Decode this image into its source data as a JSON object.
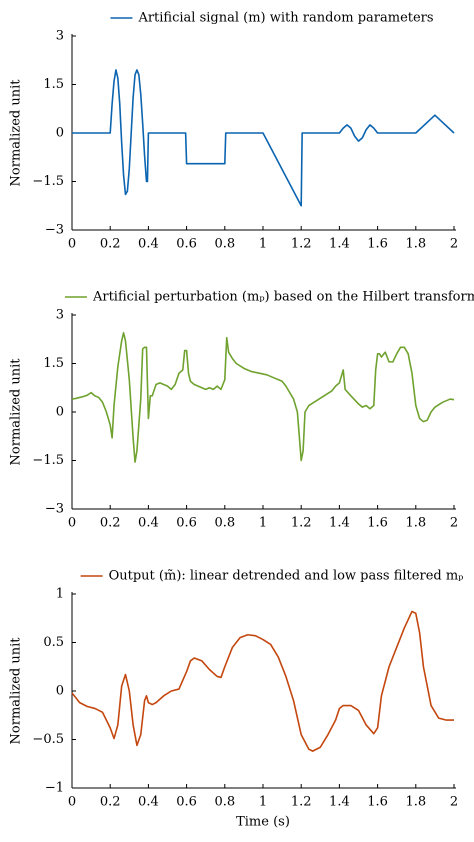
{
  "chart_data": [
    {
      "type": "line",
      "ylabel": "Normalized unit",
      "xlim": [
        0,
        2
      ],
      "ylim": [
        -3,
        3
      ],
      "xticks": [
        0,
        0.2,
        0.4,
        0.6,
        0.8,
        1,
        1.2,
        1.4,
        1.6,
        1.8,
        2
      ],
      "yticks": [
        {
          "value": -3,
          "label": "−3"
        },
        {
          "value": -1.5,
          "label": "−1.5"
        },
        0,
        1.5,
        3
      ],
      "x": [
        0,
        0.2,
        0.21,
        0.22,
        0.23,
        0.24,
        0.25,
        0.26,
        0.27,
        0.28,
        0.29,
        0.3,
        0.31,
        0.32,
        0.33,
        0.34,
        0.35,
        0.36,
        0.37,
        0.38,
        0.39,
        0.395,
        0.4,
        0.595,
        0.6,
        0.8,
        0.805,
        1.0,
        1.2,
        1.205,
        1.4,
        1.42,
        1.44,
        1.46,
        1.48,
        1.5,
        1.52,
        1.54,
        1.56,
        1.58,
        1.6,
        1.8,
        1.9,
        2
      ],
      "series": [
        {
          "name": "Artificial signal (m) with random parameters",
          "color": "#0b64b0",
          "values": [
            0,
            0,
            0.9,
            1.6,
            1.95,
            1.7,
            0.9,
            -0.3,
            -1.3,
            -1.9,
            -1.8,
            -1.1,
            0,
            1.1,
            1.8,
            1.95,
            1.8,
            1.2,
            0.3,
            -0.7,
            -1.5,
            -1.5,
            0,
            0,
            -0.95,
            -0.95,
            0,
            0,
            -2.25,
            0,
            0,
            0.15,
            0.25,
            0.15,
            -0.1,
            -0.25,
            -0.15,
            0.1,
            0.25,
            0.15,
            0,
            0,
            0.55,
            0
          ]
        }
      ]
    },
    {
      "type": "line",
      "ylabel": "Normalized unit",
      "xlim": [
        0,
        2
      ],
      "ylim": [
        -3,
        3
      ],
      "xticks": [
        0,
        0.2,
        0.4,
        0.6,
        0.8,
        1,
        1.2,
        1.4,
        1.6,
        1.8,
        2
      ],
      "yticks": [
        {
          "value": -3,
          "label": "−3"
        },
        {
          "value": -1.5,
          "label": "−1.5"
        },
        0,
        1.5,
        3
      ],
      "x": [
        0,
        0.02,
        0.04,
        0.06,
        0.08,
        0.1,
        0.12,
        0.14,
        0.16,
        0.18,
        0.2,
        0.21,
        0.22,
        0.24,
        0.26,
        0.27,
        0.28,
        0.3,
        0.32,
        0.33,
        0.34,
        0.36,
        0.37,
        0.38,
        0.39,
        0.4,
        0.41,
        0.42,
        0.44,
        0.46,
        0.48,
        0.5,
        0.52,
        0.54,
        0.56,
        0.58,
        0.59,
        0.6,
        0.61,
        0.62,
        0.64,
        0.66,
        0.68,
        0.7,
        0.72,
        0.74,
        0.76,
        0.78,
        0.8,
        0.81,
        0.82,
        0.84,
        0.86,
        0.9,
        0.94,
        0.98,
        1.02,
        1.06,
        1.1,
        1.12,
        1.14,
        1.16,
        1.18,
        1.2,
        1.21,
        1.22,
        1.24,
        1.28,
        1.32,
        1.36,
        1.38,
        1.4,
        1.42,
        1.43,
        1.46,
        1.5,
        1.52,
        1.54,
        1.56,
        1.58,
        1.59,
        1.6,
        1.61,
        1.62,
        1.64,
        1.66,
        1.68,
        1.7,
        1.72,
        1.74,
        1.76,
        1.78,
        1.8,
        1.82,
        1.84,
        1.86,
        1.88,
        1.9,
        1.94,
        1.98,
        2
      ],
      "series": [
        {
          "name": "Artificial perturbation (mₚ) based on the Hilbert transform",
          "color": "#6fa22e",
          "values": [
            0.4,
            0.42,
            0.45,
            0.48,
            0.52,
            0.6,
            0.5,
            0.45,
            0.3,
            0.0,
            -0.4,
            -0.8,
            0.2,
            1.4,
            2.2,
            2.45,
            2.2,
            1.0,
            -0.8,
            -1.55,
            -1.2,
            0.4,
            1.95,
            2.0,
            2.0,
            -0.2,
            0.5,
            0.5,
            0.85,
            0.9,
            0.85,
            0.8,
            0.7,
            0.85,
            1.2,
            1.3,
            1.9,
            1.9,
            1.2,
            0.95,
            0.85,
            0.8,
            0.75,
            0.7,
            0.75,
            0.7,
            0.8,
            0.7,
            1.0,
            2.3,
            1.85,
            1.65,
            1.5,
            1.35,
            1.25,
            1.2,
            1.15,
            1.05,
            0.95,
            0.8,
            0.6,
            0.4,
            0.0,
            -1.5,
            -1.2,
            0.0,
            0.2,
            0.35,
            0.5,
            0.65,
            0.8,
            0.9,
            1.3,
            0.7,
            0.5,
            0.25,
            0.15,
            0.2,
            0.1,
            0.2,
            1.3,
            1.8,
            1.8,
            1.7,
            1.85,
            1.55,
            1.55,
            1.8,
            2.0,
            2.0,
            1.8,
            1.2,
            0.2,
            -0.2,
            -0.3,
            -0.25,
            0.0,
            0.15,
            0.3,
            0.4,
            0.38
          ]
        }
      ]
    },
    {
      "type": "line",
      "ylabel": "Normalized unit",
      "xlabel": "Time (s)",
      "xlim": [
        0,
        2
      ],
      "ylim": [
        -1,
        1
      ],
      "xticks": [
        0,
        0.2,
        0.4,
        0.6,
        0.8,
        1,
        1.2,
        1.4,
        1.6,
        1.8,
        2
      ],
      "yticks": [
        {
          "value": -1,
          "label": "−1"
        },
        {
          "value": -0.5,
          "label": "−0.5"
        },
        0,
        0.5,
        1
      ],
      "x": [
        0,
        0.04,
        0.08,
        0.12,
        0.16,
        0.2,
        0.22,
        0.24,
        0.26,
        0.28,
        0.3,
        0.32,
        0.34,
        0.36,
        0.38,
        0.39,
        0.4,
        0.42,
        0.44,
        0.48,
        0.52,
        0.56,
        0.6,
        0.62,
        0.64,
        0.68,
        0.72,
        0.76,
        0.78,
        0.8,
        0.84,
        0.88,
        0.92,
        0.96,
        1.0,
        1.04,
        1.08,
        1.12,
        1.16,
        1.2,
        1.24,
        1.26,
        1.3,
        1.34,
        1.38,
        1.4,
        1.42,
        1.46,
        1.5,
        1.54,
        1.58,
        1.6,
        1.62,
        1.66,
        1.7,
        1.74,
        1.78,
        1.8,
        1.82,
        1.84,
        1.88,
        1.92,
        1.96,
        2
      ],
      "series": [
        {
          "name": "Output (m̃): linear detrended and low pass filtered mₚ",
          "color": "#c4470f",
          "values": [
            -0.02,
            -0.12,
            -0.16,
            -0.18,
            -0.22,
            -0.38,
            -0.49,
            -0.35,
            0.05,
            0.17,
            0.0,
            -0.35,
            -0.56,
            -0.45,
            -0.1,
            -0.05,
            -0.12,
            -0.14,
            -0.12,
            -0.05,
            0.0,
            0.02,
            0.2,
            0.31,
            0.34,
            0.31,
            0.22,
            0.15,
            0.14,
            0.25,
            0.45,
            0.55,
            0.58,
            0.57,
            0.53,
            0.48,
            0.35,
            0.15,
            -0.1,
            -0.45,
            -0.6,
            -0.62,
            -0.58,
            -0.45,
            -0.3,
            -0.18,
            -0.15,
            -0.15,
            -0.2,
            -0.35,
            -0.44,
            -0.38,
            -0.05,
            0.25,
            0.45,
            0.65,
            0.82,
            0.8,
            0.6,
            0.25,
            -0.15,
            -0.28,
            -0.3,
            -0.3
          ]
        }
      ]
    }
  ]
}
